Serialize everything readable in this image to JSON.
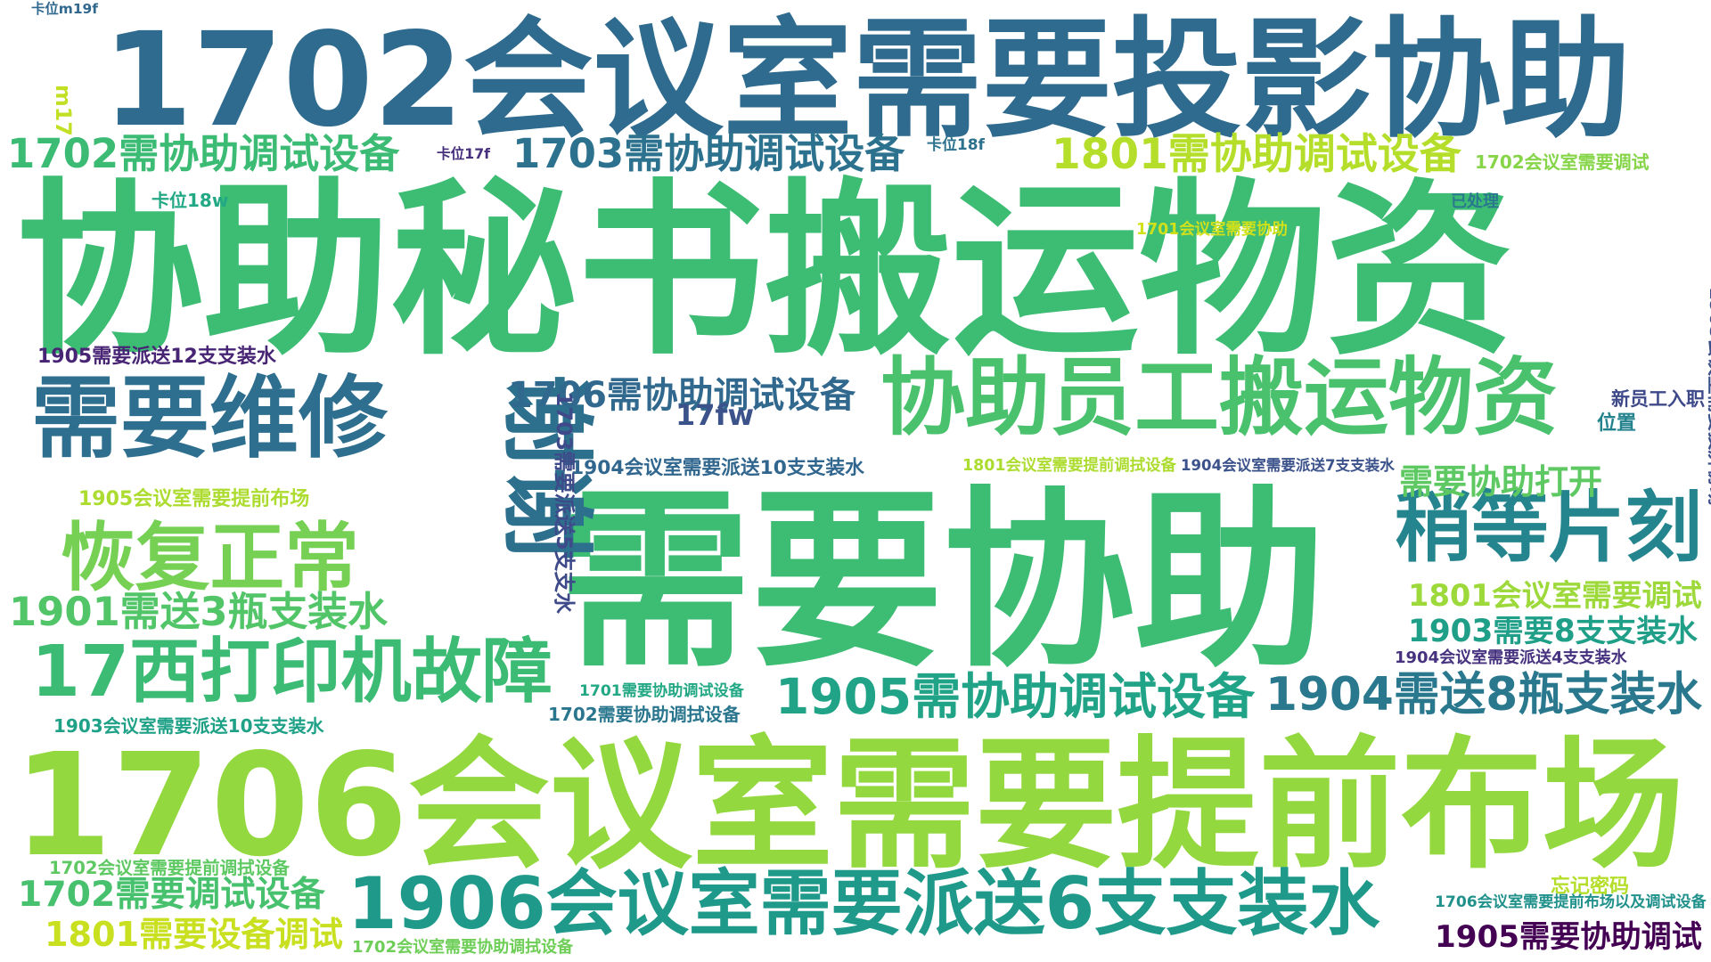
{
  "words": [
    {
      "text": "1702会议室需要投影协助",
      "color": "#2f6b8e"
    },
    {
      "text": "协助秘书搬运物资",
      "color": "#3dbc74"
    },
    {
      "text": "需要协助",
      "color": "#3dbc74"
    },
    {
      "text": "1706会议室需要提前布场",
      "color": "#94d840"
    },
    {
      "text": "1906会议室需要派送6支支装水",
      "color": "#1f9a8a"
    },
    {
      "text": "协助员工搬运物资",
      "color": "#4ac16d"
    },
    {
      "text": "需要维修",
      "color": "#2e6e8e"
    },
    {
      "text": "谢谢",
      "color": "#2d708e"
    },
    {
      "text": "恢复正常",
      "color": "#75d054"
    },
    {
      "text": "17西打印机故障",
      "color": "#3cbb75"
    },
    {
      "text": "稍等片刻",
      "color": "#25858e"
    },
    {
      "text": "1702需协助调试设备",
      "color": "#3cbb75"
    },
    {
      "text": "1703需协助调试设备",
      "color": "#2c728e"
    },
    {
      "text": "1801需协助调试设备",
      "color": "#b5de2b"
    },
    {
      "text": "1706需协助调试设备",
      "color": "#31688e"
    },
    {
      "text": "1901需送3瓶支装水",
      "color": "#52c569"
    },
    {
      "text": "1905需协助调试设备",
      "color": "#20a386"
    },
    {
      "text": "1904需送8瓶支装水",
      "color": "#2a788e"
    },
    {
      "text": "1801会议室需要调试",
      "color": "#9dd93b"
    },
    {
      "text": "1903需要8支支装水",
      "color": "#1f9f88"
    },
    {
      "text": "需要协助打开",
      "color": "#5ec962"
    },
    {
      "text": "1702需要调试设备",
      "color": "#48c16e"
    },
    {
      "text": "1801需要设备调试",
      "color": "#c8e020"
    },
    {
      "text": "1905需要协助调试",
      "color": "#440154"
    },
    {
      "text": "1905需要派送12支支装水",
      "color": "#482475"
    },
    {
      "text": "1905会议室需要提前布场",
      "color": "#addc30"
    },
    {
      "text": "1904会议室需要派送10支支装水",
      "color": "#31668e"
    },
    {
      "text": "1801会议室需要提前调拭设备",
      "color": "#addc30"
    },
    {
      "text": "1904会议室需要派送7支支装水",
      "color": "#3b528b"
    },
    {
      "text": "1904会议室需要派送4支支装水",
      "color": "#46327e"
    },
    {
      "text": "1701需要协助调试设备",
      "color": "#22a884"
    },
    {
      "text": "1702需要协助调拭设备",
      "color": "#2a768e"
    },
    {
      "text": "1903会议室需要派送10支支装水",
      "color": "#1fa187"
    },
    {
      "text": "1702会议室需要提前调拭设备",
      "color": "#5ec962"
    },
    {
      "text": "1706会议室需要提前布场以及调试设备",
      "color": "#21918c"
    },
    {
      "text": "1702会议室需要协助调拭设备",
      "color": "#6ece58"
    },
    {
      "text": "1702会议室需要调试",
      "color": "#86d549"
    },
    {
      "text": "1701会议室需要协助",
      "color": "#d0e11c"
    },
    {
      "text": "1703需要派送5支支水",
      "color": "#3e4a89"
    },
    {
      "text": "1905会议室需要投屏协助",
      "color": "#3b528b"
    },
    {
      "text": "17fw",
      "color": "#3b528b"
    },
    {
      "text": "新员工入职",
      "color": "#3e4989"
    },
    {
      "text": "位置",
      "color": "#25838e"
    },
    {
      "text": "已处理",
      "color": "#2a788e"
    },
    {
      "text": "忘记密码",
      "color": "#b5de2b"
    },
    {
      "text": "卡位m19f",
      "color": "#31688e"
    },
    {
      "text": "m17",
      "color": "#c2df23"
    },
    {
      "text": "卡位17f",
      "color": "#46307e"
    },
    {
      "text": "卡位18f",
      "color": "#2c728e"
    },
    {
      "text": "卡位18w",
      "color": "#22a884"
    }
  ]
}
